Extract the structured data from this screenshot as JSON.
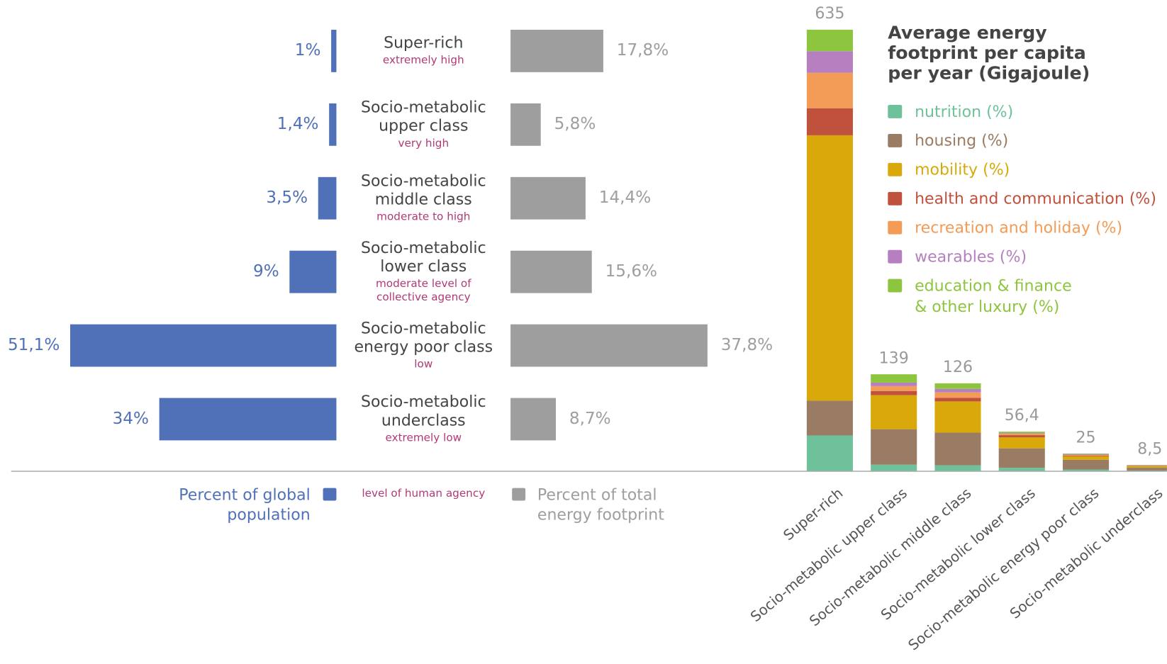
{
  "chart_data": [
    {
      "type": "diverging_bar",
      "categories": [
        "Super-rich",
        "Socio-metabolic upper class",
        "Socio-metabolic middle class",
        "Socio-metabolic lower class",
        "Socio-metabolic energy poor class",
        "Socio-metabolic underclass"
      ],
      "agency_levels": [
        "extremely high",
        "very high",
        "moderate to high",
        "moderate level of collective agency",
        "low",
        "extremely low"
      ],
      "agency_legend": "level of human agency",
      "series": [
        {
          "name": "Percent of global population",
          "color": "#5071b8",
          "values": [
            1,
            1.4,
            3.5,
            9,
            51.1,
            34
          ],
          "value_labels": [
            "1%",
            "1,4%",
            "3,5%",
            "9%",
            "51,1%",
            "34%"
          ]
        },
        {
          "name": "Percent of total energy footprint",
          "color": "#9e9e9e",
          "values": [
            17.8,
            5.8,
            14.4,
            15.6,
            37.8,
            8.7
          ],
          "value_labels": [
            "17,8%",
            "5,8%",
            "14,4%",
            "15,6%",
            "37,8%",
            "8,7%"
          ]
        }
      ]
    },
    {
      "type": "stacked_bar",
      "legend_title": "Average energy footprint per capita per year (Gigajoule)",
      "categories": [
        "Super-rich",
        "Socio-metabolic upper class",
        "Socio-metabolic middle class",
        "Socio-metabolic lower class",
        "Socio-metabolic energy poor class",
        "Socio-metabolic underclass"
      ],
      "totals": [
        635,
        139,
        126,
        56.4,
        25,
        8.5
      ],
      "total_labels": [
        "635",
        "139",
        "126",
        "56,4",
        "25",
        "8,5"
      ],
      "series": [
        {
          "name": "nutrition (%)",
          "color": "#6ec19a",
          "values": [
            51,
            9,
            8,
            4.4,
            2,
            0.5
          ]
        },
        {
          "name": "housing (%)",
          "color": "#9a7b63",
          "values": [
            50,
            51,
            47,
            28,
            14,
            4
          ]
        },
        {
          "name": "mobility (%)",
          "color": "#d9a80b",
          "values": [
            382,
            49,
            45,
            16,
            5,
            2
          ]
        },
        {
          "name": "health and communication (%)",
          "color": "#c0513d",
          "values": [
            39,
            6,
            5,
            3,
            1,
            0.5
          ]
        },
        {
          "name": "recreation and holiday (%)",
          "color": "#f39c58",
          "values": [
            51,
            7,
            8,
            2,
            1,
            0.5
          ]
        },
        {
          "name": "wearables (%)",
          "color": "#b57fc0",
          "values": [
            31,
            5,
            5,
            1,
            1,
            0.5
          ]
        },
        {
          "name": "education & finance & other luxury (%)",
          "color": "#8dc53e",
          "values": [
            31,
            12,
            8,
            2,
            1,
            0.5
          ]
        }
      ]
    }
  ]
}
